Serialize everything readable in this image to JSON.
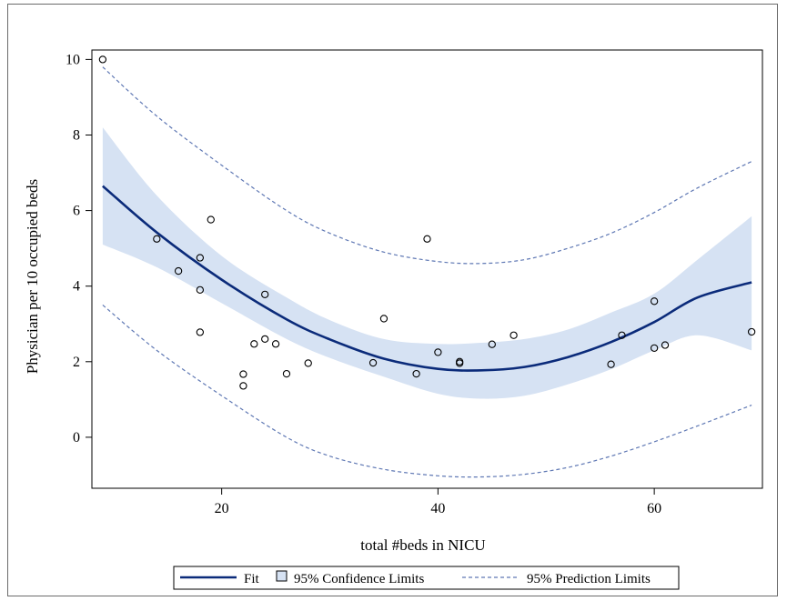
{
  "chart_data": {
    "type": "scatter",
    "xlabel": "total #beds in NICU",
    "ylabel": "Physician per 10 occupied beds",
    "xlim": [
      8,
      70
    ],
    "ylim": [
      -1.35,
      10.25
    ],
    "xticks": [
      20,
      40,
      60
    ],
    "yticks": [
      0,
      2,
      4,
      6,
      8,
      10
    ],
    "grid": false,
    "legend_placement": "bottom",
    "legend": {
      "fit": "Fit",
      "confidence": "95% Confidence Limits",
      "prediction": "95% Prediction Limits"
    },
    "colors": {
      "fit": "#0b2b7a",
      "band": "#d6e2f3",
      "prediction": "#5f78b4",
      "points": "#000000"
    },
    "points": [
      {
        "x": 9,
        "y": 10.0
      },
      {
        "x": 14,
        "y": 5.25
      },
      {
        "x": 16,
        "y": 4.4
      },
      {
        "x": 18,
        "y": 4.75
      },
      {
        "x": 18,
        "y": 3.9
      },
      {
        "x": 18,
        "y": 2.78
      },
      {
        "x": 19,
        "y": 5.76
      },
      {
        "x": 22,
        "y": 1.67
      },
      {
        "x": 22,
        "y": 1.36
      },
      {
        "x": 23,
        "y": 2.47
      },
      {
        "x": 24,
        "y": 3.78
      },
      {
        "x": 24,
        "y": 2.6
      },
      {
        "x": 25,
        "y": 2.47
      },
      {
        "x": 26,
        "y": 1.68
      },
      {
        "x": 28,
        "y": 1.96
      },
      {
        "x": 34,
        "y": 1.97
      },
      {
        "x": 35,
        "y": 3.14
      },
      {
        "x": 38,
        "y": 1.68
      },
      {
        "x": 39,
        "y": 5.25
      },
      {
        "x": 40,
        "y": 2.25
      },
      {
        "x": 42,
        "y": 2.0
      },
      {
        "x": 42,
        "y": 1.96
      },
      {
        "x": 45,
        "y": 2.46
      },
      {
        "x": 47,
        "y": 2.7
      },
      {
        "x": 56,
        "y": 1.93
      },
      {
        "x": 57,
        "y": 2.7
      },
      {
        "x": 60,
        "y": 3.6
      },
      {
        "x": 60,
        "y": 2.36
      },
      {
        "x": 61,
        "y": 2.44
      },
      {
        "x": 69,
        "y": 2.79
      }
    ],
    "fit": {
      "x": [
        9,
        14,
        20,
        26,
        30,
        35,
        40,
        44,
        48,
        52,
        56,
        60,
        64,
        69
      ],
      "y": [
        6.65,
        5.42,
        4.17,
        3.12,
        2.59,
        2.08,
        1.81,
        1.77,
        1.86,
        2.12,
        2.52,
        3.05,
        3.7,
        4.1
      ]
    },
    "confidence_limits": {
      "x": [
        9,
        14,
        20,
        26,
        30,
        35,
        40,
        44,
        48,
        52,
        56,
        60,
        64,
        69
      ],
      "lower": [
        5.1,
        4.5,
        3.55,
        2.6,
        2.1,
        1.6,
        1.15,
        1.02,
        1.1,
        1.4,
        1.8,
        2.3,
        2.7,
        2.3
      ],
      "upper": [
        8.2,
        6.4,
        4.8,
        3.7,
        3.1,
        2.6,
        2.47,
        2.5,
        2.6,
        2.85,
        3.3,
        3.8,
        4.7,
        5.85
      ]
    },
    "prediction_limits": {
      "x": [
        9,
        14,
        20,
        26,
        30,
        35,
        40,
        44,
        48,
        52,
        56,
        60,
        64,
        69
      ],
      "lower": [
        3.5,
        2.3,
        1.1,
        0.0,
        -0.5,
        -0.85,
        -1.02,
        -1.05,
        -0.98,
        -0.8,
        -0.5,
        -0.12,
        0.3,
        0.85
      ],
      "upper": [
        9.8,
        8.5,
        7.2,
        6.0,
        5.4,
        4.9,
        4.65,
        4.6,
        4.7,
        5.0,
        5.4,
        5.95,
        6.6,
        7.3
      ]
    }
  }
}
